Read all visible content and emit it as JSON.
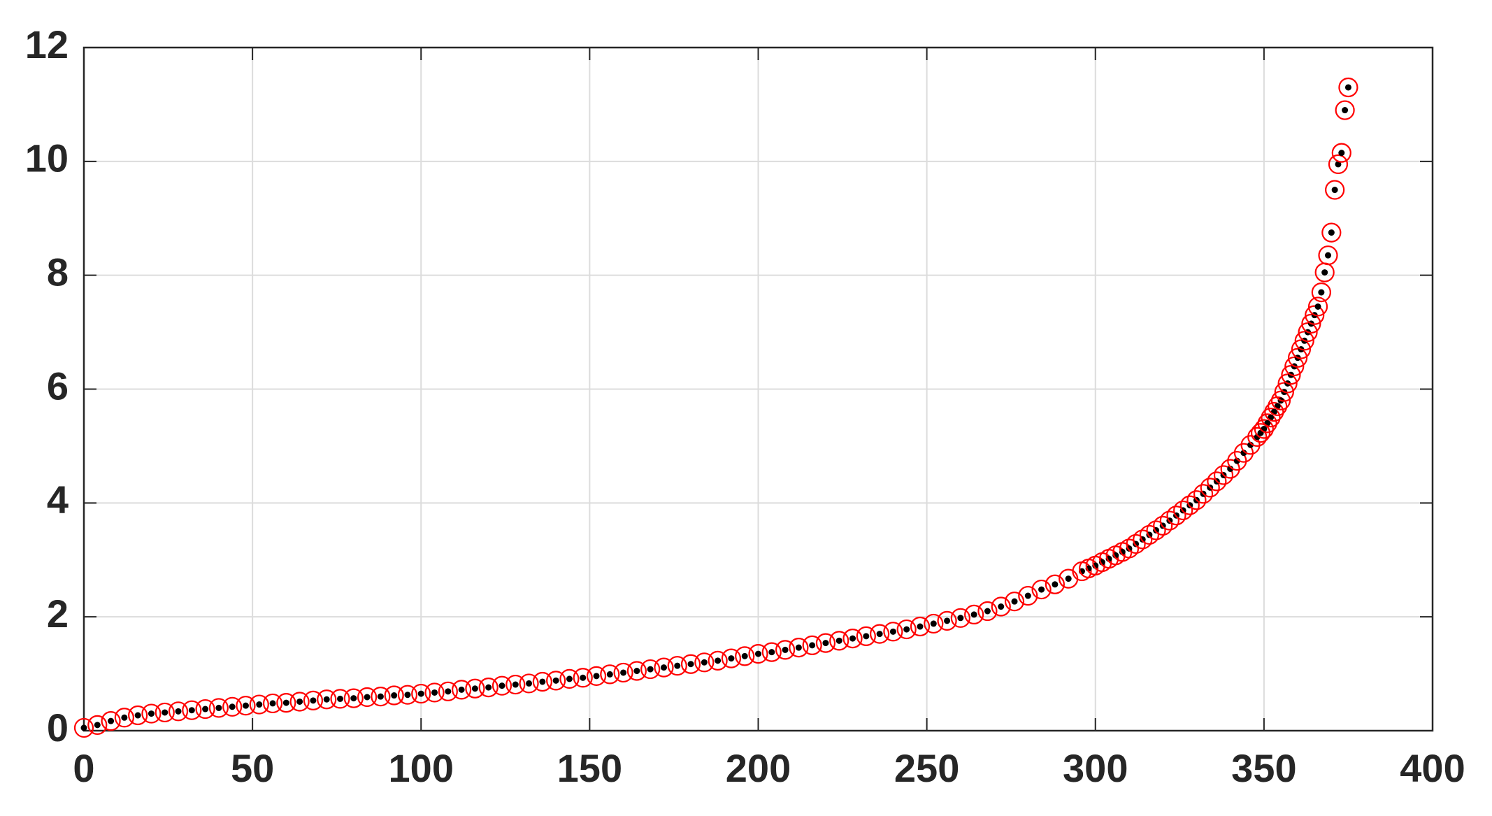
{
  "chart_data": {
    "type": "scatter",
    "x": [
      0,
      4,
      8,
      12,
      16,
      20,
      24,
      28,
      32,
      36,
      40,
      44,
      48,
      52,
      56,
      60,
      64,
      68,
      72,
      76,
      80,
      84,
      88,
      92,
      96,
      100,
      104,
      108,
      112,
      116,
      120,
      124,
      128,
      132,
      136,
      140,
      144,
      148,
      152,
      156,
      160,
      164,
      168,
      172,
      176,
      180,
      184,
      188,
      192,
      196,
      200,
      204,
      208,
      212,
      216,
      220,
      224,
      228,
      232,
      236,
      240,
      244,
      248,
      252,
      256,
      260,
      264,
      268,
      272,
      276,
      280,
      284,
      288,
      292,
      296,
      298,
      300,
      302,
      304,
      306,
      308,
      310,
      312,
      314,
      316,
      318,
      320,
      322,
      324,
      326,
      328,
      330,
      332,
      334,
      336,
      338,
      340,
      342,
      344,
      346,
      348,
      349,
      350,
      351,
      352,
      353,
      354,
      355,
      356,
      357,
      358,
      359,
      360,
      361,
      362,
      363,
      364,
      365,
      366,
      367,
      368,
      369,
      370,
      371,
      372,
      373,
      374,
      375
    ],
    "values": [
      0.05,
      0.1,
      0.17,
      0.23,
      0.27,
      0.3,
      0.32,
      0.34,
      0.36,
      0.38,
      0.4,
      0.42,
      0.44,
      0.46,
      0.48,
      0.49,
      0.51,
      0.53,
      0.55,
      0.56,
      0.57,
      0.59,
      0.6,
      0.62,
      0.63,
      0.65,
      0.67,
      0.69,
      0.72,
      0.74,
      0.76,
      0.79,
      0.81,
      0.83,
      0.86,
      0.88,
      0.91,
      0.93,
      0.96,
      0.99,
      1.02,
      1.05,
      1.08,
      1.11,
      1.14,
      1.17,
      1.2,
      1.23,
      1.27,
      1.31,
      1.35,
      1.38,
      1.42,
      1.46,
      1.5,
      1.54,
      1.58,
      1.62,
      1.66,
      1.7,
      1.74,
      1.78,
      1.83,
      1.88,
      1.93,
      1.98,
      2.04,
      2.1,
      2.18,
      2.27,
      2.37,
      2.48,
      2.57,
      2.67,
      2.8,
      2.85,
      2.9,
      2.96,
      3.02,
      3.08,
      3.14,
      3.2,
      3.28,
      3.36,
      3.44,
      3.52,
      3.6,
      3.69,
      3.78,
      3.87,
      3.96,
      4.05,
      4.16,
      4.27,
      4.38,
      4.49,
      4.6,
      4.74,
      4.88,
      5.02,
      5.16,
      5.23,
      5.3,
      5.4,
      5.5,
      5.6,
      5.7,
      5.8,
      5.95,
      6.1,
      6.25,
      6.4,
      6.55,
      6.7,
      6.85,
      7.0,
      7.15,
      7.3,
      7.45,
      7.7,
      8.05,
      8.35,
      8.75,
      9.5,
      9.95,
      10.15,
      10.9,
      11.3
    ],
    "color": "#ff0000",
    "dot_color": "#000000",
    "xlim": [
      0,
      400
    ],
    "xticks": [
      0,
      50,
      100,
      150,
      200,
      250,
      300,
      350,
      400
    ],
    "ylim": [
      0,
      12
    ],
    "yticks": [
      0,
      2,
      4,
      6,
      8,
      10,
      12
    ],
    "grid": true
  }
}
